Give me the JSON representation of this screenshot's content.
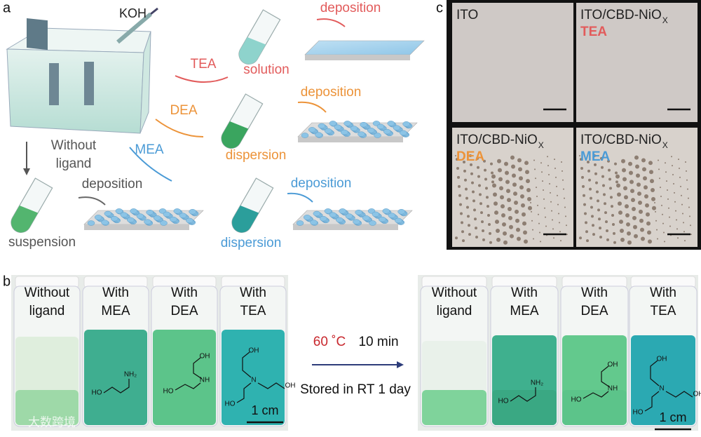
{
  "panel_a": {
    "label": "a",
    "reagent": "KOH",
    "routes": [
      {
        "ligand": "TEA",
        "state": "solution",
        "step": "deposition"
      },
      {
        "ligand": "DEA",
        "state": "dispersion",
        "step": "deposition"
      },
      {
        "ligand": "MEA",
        "state": "dispersion",
        "step": "deposition"
      }
    ],
    "without": {
      "label_lines": [
        "Without",
        "ligand"
      ],
      "state": "suspension",
      "step": "deposition"
    }
  },
  "panel_c": {
    "label": "c",
    "tiles": [
      {
        "title": "ITO"
      },
      {
        "title": "ITO/CBD-NiO",
        "subscript": "X",
        "ligand": "TEA"
      },
      {
        "title": "ITO/CBD-NiO",
        "subscript": "X",
        "ligand": "DEA"
      },
      {
        "title": "ITO/CBD-NiO",
        "subscript": "X",
        "ligand": "MEA"
      }
    ]
  },
  "panel_b": {
    "label": "b",
    "vials": [
      [
        "Without",
        "ligand"
      ],
      [
        "With",
        "MEA"
      ],
      [
        "With",
        "DEA"
      ],
      [
        "With",
        "TEA"
      ]
    ],
    "temperature": "60 ˚C",
    "time": "10 min",
    "storage": "Stored in RT 1 day",
    "scale_bar": "1 cm",
    "structures": [
      {
        "atoms": [
          "HO",
          "NH₂"
        ]
      },
      {
        "atoms": [
          "OH",
          "NH",
          "HO"
        ]
      },
      {
        "atoms": [
          "OH",
          "N",
          "HO",
          "OH"
        ]
      }
    ]
  },
  "watermark": "大数跨境"
}
